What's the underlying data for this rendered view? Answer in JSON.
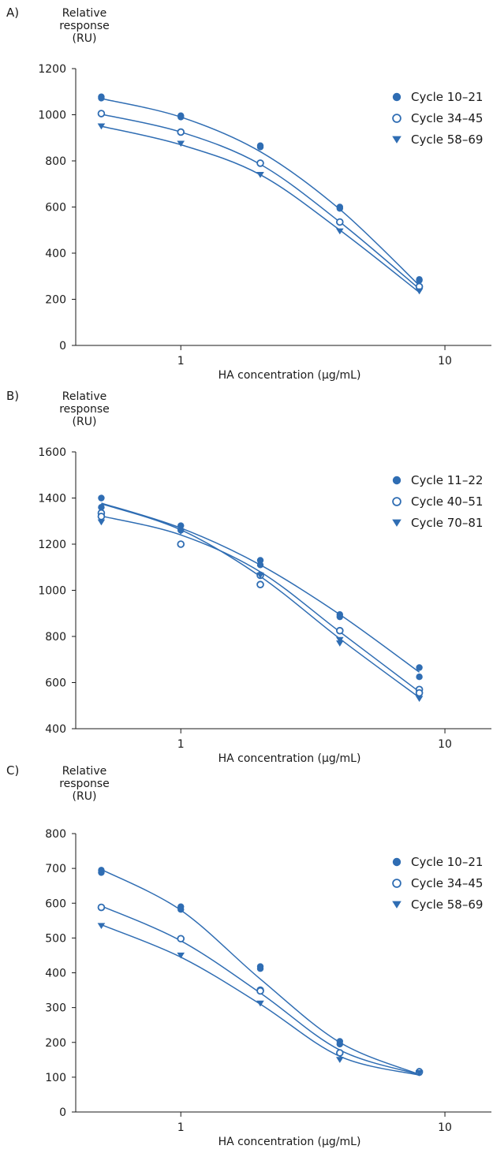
{
  "chart_data": [
    {
      "type": "scatter",
      "panel_label": "A)",
      "y_title_lines": [
        "Relative",
        "response",
        "(RU)"
      ],
      "xlabel": "HA concentration (µg/mL)",
      "x_scale": "log",
      "xlim": [
        0.4,
        15
      ],
      "x_ticks": [
        1,
        10
      ],
      "ylim": [
        0,
        1200
      ],
      "y_ticks": [
        0,
        200,
        400,
        600,
        800,
        1000,
        1200
      ],
      "legend_position": "top-right",
      "color": "#2f6db3",
      "series": [
        {
          "name": "Cycle 10–21",
          "marker": "filled-circle",
          "x": [
            0.5,
            0.5,
            1,
            1,
            2,
            2,
            4,
            4,
            8,
            8
          ],
          "y": [
            1078,
            1072,
            996,
            990,
            866,
            860,
            600,
            594,
            286,
            282
          ],
          "curve": [
            1070,
            990,
            840,
            590,
            260
          ]
        },
        {
          "name": "Cycle 34–45",
          "marker": "open-circle",
          "x": [
            0.5,
            1,
            2,
            4,
            8
          ],
          "y": [
            1005,
            925,
            790,
            535,
            255
          ],
          "curve": [
            1002,
            925,
            785,
            535,
            245
          ]
        },
        {
          "name": "Cycle 58–69",
          "marker": "triangle-down",
          "x": [
            0.5,
            1,
            2,
            4,
            8
          ],
          "y": [
            950,
            875,
            740,
            495,
            235
          ],
          "curve": [
            950,
            870,
            740,
            500,
            230
          ]
        }
      ]
    },
    {
      "type": "scatter",
      "panel_label": "B)",
      "y_title_lines": [
        "Relative",
        "response",
        "(RU)"
      ],
      "xlabel": "HA concentration (µg/mL)",
      "x_scale": "log",
      "xlim": [
        0.4,
        15
      ],
      "x_ticks": [
        1,
        10
      ],
      "ylim": [
        400,
        1600
      ],
      "y_ticks": [
        400,
        600,
        800,
        1000,
        1200,
        1400,
        1600
      ],
      "legend_position": "top-right",
      "color": "#2f6db3",
      "series": [
        {
          "name": "Cycle 11–22",
          "marker": "filled-circle",
          "x": [
            0.5,
            0.5,
            1,
            1,
            2,
            2,
            4,
            4,
            8,
            8
          ],
          "y": [
            1400,
            1360,
            1280,
            1260,
            1130,
            1110,
            895,
            885,
            665,
            625
          ],
          "curve": [
            1378,
            1270,
            1110,
            895,
            645
          ]
        },
        {
          "name": "Cycle 40–51",
          "marker": "open-circle",
          "x": [
            0.5,
            0.5,
            1,
            2,
            2,
            4,
            8,
            8
          ],
          "y": [
            1335,
            1320,
            1200,
            1065,
            1025,
            825,
            570,
            555
          ],
          "curve": [
            1322,
            1240,
            1080,
            820,
            560
          ]
        },
        {
          "name": "Cycle 70–81",
          "marker": "triangle-down",
          "x": [
            0.5,
            1,
            2,
            4,
            4,
            8
          ],
          "y": [
            1295,
            1255,
            1065,
            785,
            770,
            530
          ],
          "curve": [
            1375,
            1262,
            1060,
            790,
            535
          ]
        }
      ]
    },
    {
      "type": "scatter",
      "panel_label": "C)",
      "y_title_lines": [
        "Relative",
        "response",
        "(RU)"
      ],
      "xlabel": "HA concentration (µg/mL)",
      "x_scale": "log",
      "xlim": [
        0.4,
        15
      ],
      "x_ticks": [
        1,
        10
      ],
      "ylim": [
        0,
        800
      ],
      "y_ticks": [
        0,
        100,
        200,
        300,
        400,
        500,
        600,
        700,
        800
      ],
      "legend_position": "top-right",
      "color": "#2f6db3",
      "series": [
        {
          "name": "Cycle 10–21",
          "marker": "filled-circle",
          "x": [
            0.5,
            0.5,
            1,
            1,
            2,
            2,
            4,
            4,
            8,
            8
          ],
          "y": [
            695,
            688,
            590,
            582,
            418,
            412,
            203,
            195,
            117,
            113
          ],
          "curve": [
            697,
            580,
            382,
            200,
            108
          ]
        },
        {
          "name": "Cycle 34–45",
          "marker": "open-circle",
          "x": [
            0.5,
            1,
            2,
            2,
            4,
            8
          ],
          "y": [
            588,
            498,
            350,
            348,
            170,
            115
          ],
          "curve": [
            592,
            492,
            342,
            178,
            108
          ]
        },
        {
          "name": "Cycle 58–69",
          "marker": "triangle-down",
          "x": [
            0.5,
            1,
            2,
            4,
            8
          ],
          "y": [
            535,
            450,
            312,
            150,
            112
          ],
          "curve": [
            538,
            445,
            310,
            160,
            106
          ]
        }
      ]
    }
  ]
}
